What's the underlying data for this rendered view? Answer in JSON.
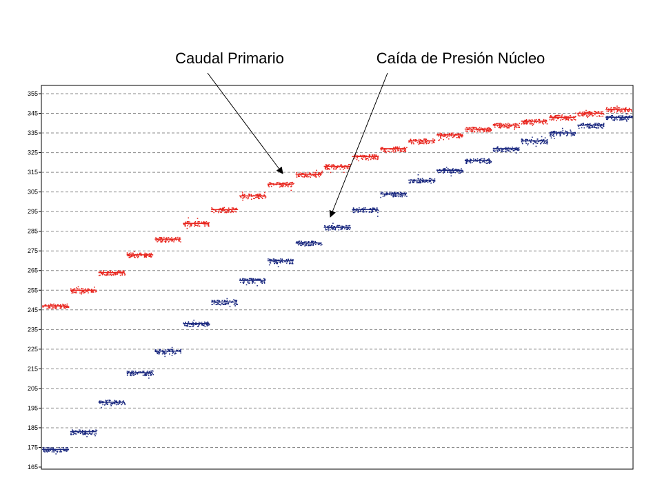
{
  "chart_data": {
    "type": "scatter",
    "title": "",
    "xlabel": "",
    "ylabel": "",
    "ylim": [
      165,
      355
    ],
    "yticks": [
      "355",
      "345",
      "335",
      "325",
      "315",
      "305",
      "295",
      "285",
      "275",
      "265",
      "255",
      "245",
      "235",
      "225",
      "215",
      "205",
      "195",
      "185",
      "175",
      "165"
    ],
    "grid": "horizontal-dashed",
    "x_steps": 21,
    "annotations": [
      {
        "text": "Caudal Primario",
        "points_to_series": "Caudal Primario"
      },
      {
        "text": "Caída de Presión Núcleo",
        "points_to_series": "Caída de Presión Núcleo"
      }
    ],
    "series": [
      {
        "name": "Caudal Primario",
        "color": "#e8261f",
        "values": [
          247,
          255,
          264,
          273,
          281,
          289,
          296,
          303,
          309,
          314,
          318,
          323,
          327,
          331,
          334,
          337,
          339,
          341,
          343,
          345,
          347
        ]
      },
      {
        "name": "Caída de Presión Núcleo",
        "color": "#1c2a80",
        "values": [
          174,
          183,
          198,
          213,
          224,
          238,
          249,
          260,
          270,
          279,
          287,
          296,
          304,
          311,
          316,
          321,
          327,
          331,
          335,
          339,
          343
        ]
      }
    ]
  }
}
